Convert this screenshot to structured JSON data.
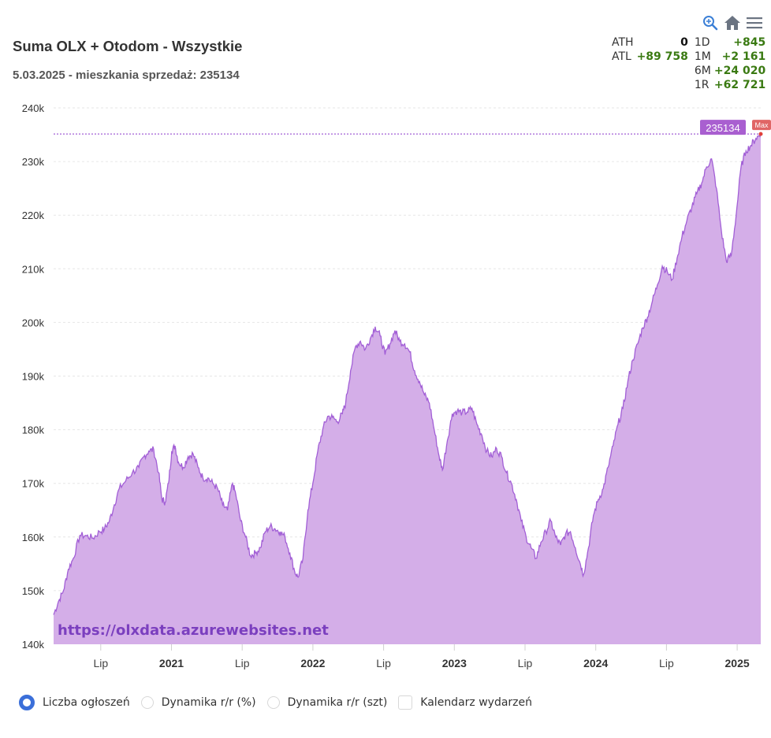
{
  "header": {
    "title": "Suma OLX + Otodom - Wszystkie",
    "subtitle": "5.03.2025 - mieszkania sprzedaż: 235134"
  },
  "toolbar": {
    "icons": [
      "zoom-in-icon",
      "home-icon",
      "menu-icon"
    ]
  },
  "stats": {
    "left": [
      {
        "label": "ATH",
        "value": "0"
      },
      {
        "label": "ATL",
        "value": "+89 758"
      }
    ],
    "right": [
      {
        "label": "1D",
        "value": "+845"
      },
      {
        "label": "1M",
        "value": "+2 161"
      },
      {
        "label": "6M",
        "value": "+24 020"
      },
      {
        "label": "1R",
        "value": "+62 721"
      }
    ]
  },
  "legend": {
    "options": [
      {
        "label": "Liczba ogłoszeń",
        "type": "radio",
        "checked": true
      },
      {
        "label": "Dynamika r/r (%)",
        "type": "radio",
        "checked": false
      },
      {
        "label": "Dynamika r/r (szt)",
        "type": "radio",
        "checked": false
      },
      {
        "label": "Kalendarz wydarzeń",
        "type": "checkbox",
        "checked": false
      }
    ]
  },
  "colors": {
    "area_fill": "#d4aee8",
    "line": "#a25fd6",
    "max_label_bg": "#a95fd0",
    "max_badge_bg": "#e06666",
    "watermark": "#7b3fbf",
    "positive": "#3a7a12",
    "radio_checked": "#3b6fd9"
  },
  "chart_data": {
    "type": "area",
    "title": "Suma OLX + Otodom - Wszystkie",
    "xlabel": "",
    "ylabel": "",
    "ylim": [
      140000,
      240000
    ],
    "yticks": [
      140000,
      150000,
      160000,
      170000,
      180000,
      190000,
      200000,
      210000,
      220000,
      230000,
      240000
    ],
    "ytick_labels": [
      "140k",
      "150k",
      "160k",
      "170k",
      "180k",
      "190k",
      "200k",
      "210k",
      "220k",
      "230k",
      "240k"
    ],
    "xlim": [
      "2020-03",
      "2025-03"
    ],
    "xticks": [
      {
        "date": "2020-07",
        "label": "Lip",
        "bold": false
      },
      {
        "date": "2021-01",
        "label": "2021",
        "bold": true
      },
      {
        "date": "2021-07",
        "label": "Lip",
        "bold": false
      },
      {
        "date": "2022-01",
        "label": "2022",
        "bold": true
      },
      {
        "date": "2022-07",
        "label": "Lip",
        "bold": false
      },
      {
        "date": "2023-01",
        "label": "2023",
        "bold": true
      },
      {
        "date": "2023-07",
        "label": "Lip",
        "bold": false
      },
      {
        "date": "2024-01",
        "label": "2024",
        "bold": true
      },
      {
        "date": "2024-07",
        "label": "Lip",
        "bold": false
      },
      {
        "date": "2025-01",
        "label": "2025",
        "bold": true
      }
    ],
    "grid": true,
    "last_value": 235134,
    "last_value_label": "235134",
    "max_marker_label": "Max",
    "watermark": "https://olxdata.azurewebsites.net",
    "series": [
      {
        "name": "Liczba ogłoszeń",
        "points": [
          [
            0.0,
            145.5
          ],
          [
            0.03,
            148
          ],
          [
            0.06,
            150
          ],
          [
            0.09,
            154
          ],
          [
            0.12,
            156
          ],
          [
            0.16,
            160.3
          ],
          [
            0.2,
            160.2
          ],
          [
            0.24,
            159.8
          ],
          [
            0.28,
            161
          ],
          [
            0.31,
            161.5
          ],
          [
            0.34,
            163
          ],
          [
            0.37,
            166
          ],
          [
            0.4,
            169
          ],
          [
            0.44,
            170.5
          ],
          [
            0.48,
            172
          ],
          [
            0.52,
            173
          ],
          [
            0.55,
            175
          ],
          [
            0.58,
            176
          ],
          [
            0.61,
            176.3
          ],
          [
            0.64,
            172
          ],
          [
            0.66,
            167
          ],
          [
            0.68,
            166.5
          ],
          [
            0.7,
            170
          ],
          [
            0.72,
            176
          ],
          [
            0.74,
            177
          ],
          [
            0.76,
            174
          ],
          [
            0.79,
            173
          ],
          [
            0.82,
            175
          ],
          [
            0.85,
            175.5
          ],
          [
            0.88,
            173
          ],
          [
            0.91,
            171
          ],
          [
            0.94,
            171
          ],
          [
            0.97,
            170
          ],
          [
            1.0,
            169
          ],
          [
            1.03,
            166
          ],
          [
            1.06,
            165
          ],
          [
            1.09,
            170
          ],
          [
            1.11,
            168
          ],
          [
            1.14,
            163
          ],
          [
            1.17,
            160
          ],
          [
            1.2,
            156.5
          ],
          [
            1.23,
            157
          ],
          [
            1.26,
            158
          ],
          [
            1.29,
            161
          ],
          [
            1.32,
            162
          ],
          [
            1.35,
            161.5
          ],
          [
            1.38,
            161
          ],
          [
            1.41,
            160
          ],
          [
            1.44,
            157
          ],
          [
            1.47,
            153.5
          ],
          [
            1.49,
            152.5
          ],
          [
            1.52,
            156
          ],
          [
            1.55,
            165
          ],
          [
            1.58,
            170
          ],
          [
            1.61,
            176
          ],
          [
            1.64,
            180
          ],
          [
            1.67,
            182.5
          ],
          [
            1.7,
            182.3
          ],
          [
            1.73,
            181.5
          ],
          [
            1.76,
            183
          ],
          [
            1.78,
            185
          ],
          [
            1.81,
            191
          ],
          [
            1.84,
            195.5
          ],
          [
            1.87,
            196.5
          ],
          [
            1.9,
            195
          ],
          [
            1.93,
            197
          ],
          [
            1.96,
            199.2
          ],
          [
            1.99,
            197.5
          ],
          [
            2.02,
            194
          ],
          [
            2.05,
            196
          ],
          [
            2.08,
            198.5
          ],
          [
            2.11,
            196.5
          ],
          [
            2.14,
            196
          ],
          [
            2.17,
            194.5
          ],
          [
            2.2,
            191
          ],
          [
            2.23,
            189
          ],
          [
            2.26,
            186.5
          ],
          [
            2.29,
            185
          ],
          [
            2.32,
            180
          ],
          [
            2.35,
            175
          ],
          [
            2.37,
            172.5
          ],
          [
            2.4,
            178
          ],
          [
            2.43,
            183
          ],
          [
            2.46,
            183.5
          ],
          [
            2.49,
            183.2
          ],
          [
            2.52,
            183.3
          ],
          [
            2.55,
            184
          ],
          [
            2.58,
            181
          ],
          [
            2.61,
            179
          ],
          [
            2.64,
            176
          ],
          [
            2.67,
            175
          ],
          [
            2.7,
            176.5
          ],
          [
            2.73,
            175
          ],
          [
            2.76,
            172
          ],
          [
            2.79,
            170
          ],
          [
            2.82,
            167
          ],
          [
            2.85,
            163
          ],
          [
            2.88,
            160
          ],
          [
            2.91,
            158
          ],
          [
            2.94,
            156
          ],
          [
            2.97,
            159
          ],
          [
            3.0,
            161
          ],
          [
            3.03,
            163
          ],
          [
            3.06,
            160
          ],
          [
            3.09,
            158.5
          ],
          [
            3.12,
            160.5
          ],
          [
            3.15,
            161
          ],
          [
            3.18,
            158
          ],
          [
            3.21,
            155
          ],
          [
            3.23,
            153
          ],
          [
            3.26,
            158
          ],
          [
            3.29,
            164
          ],
          [
            3.32,
            167
          ],
          [
            3.35,
            169
          ],
          [
            3.38,
            173
          ],
          [
            3.41,
            177
          ],
          [
            3.44,
            181
          ],
          [
            3.47,
            184
          ],
          [
            3.5,
            189
          ],
          [
            3.53,
            193
          ],
          [
            3.56,
            196
          ],
          [
            3.59,
            199
          ],
          [
            3.62,
            201
          ],
          [
            3.65,
            204
          ],
          [
            3.68,
            207
          ],
          [
            3.71,
            210.5
          ],
          [
            3.74,
            209.5
          ],
          [
            3.77,
            208
          ],
          [
            3.8,
            212
          ],
          [
            3.83,
            216
          ],
          [
            3.86,
            219
          ],
          [
            3.89,
            221.5
          ],
          [
            3.92,
            224
          ],
          [
            3.95,
            226
          ],
          [
            3.98,
            229
          ],
          [
            4.01,
            230.5
          ],
          [
            4.04,
            225
          ],
          [
            4.07,
            217
          ],
          [
            4.1,
            211.5
          ],
          [
            4.13,
            212.5
          ],
          [
            4.16,
            220
          ],
          [
            4.19,
            229
          ],
          [
            4.22,
            232
          ],
          [
            4.25,
            233
          ],
          [
            4.28,
            234.3
          ],
          [
            4.31,
            235.1
          ]
        ]
      }
    ]
  }
}
